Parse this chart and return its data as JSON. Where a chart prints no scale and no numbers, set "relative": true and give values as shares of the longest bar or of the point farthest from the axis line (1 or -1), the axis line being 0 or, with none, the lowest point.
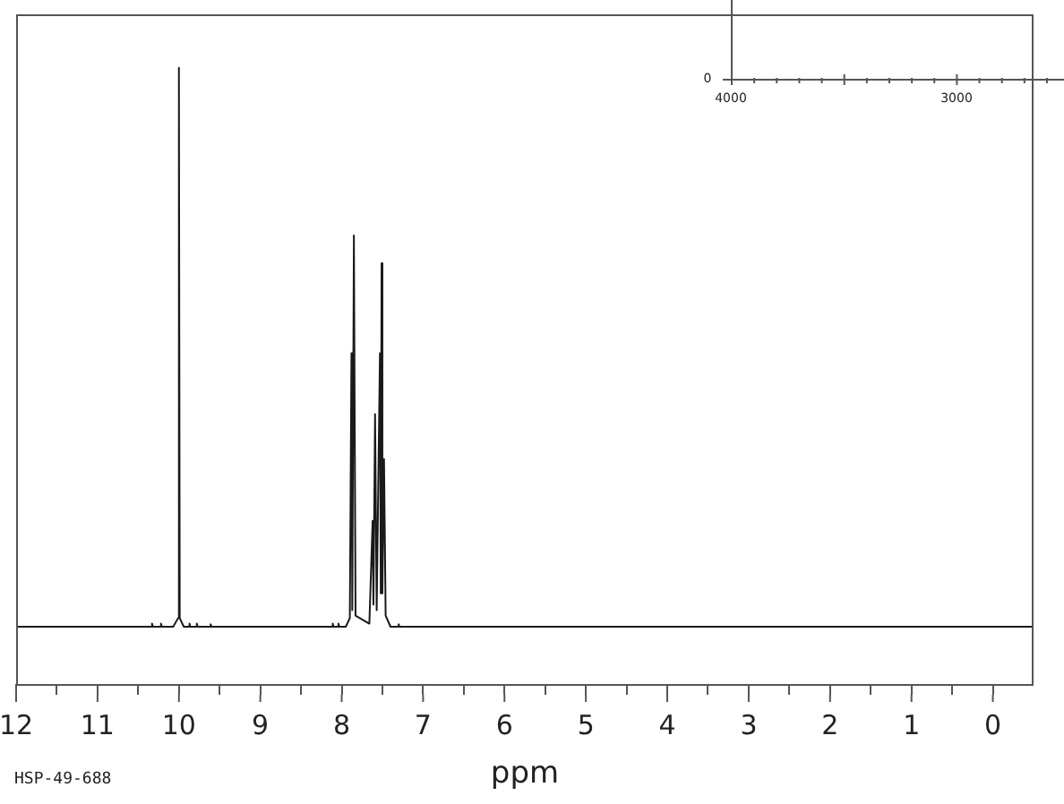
{
  "chart_data": [
    {
      "type": "line",
      "xlabel": "ppm",
      "annotations": [
        "HSP-49-688"
      ],
      "relative": true,
      "series": [
        {
          "color": "#1a1a1a",
          "x": [
            12,
            10.34,
            10.33,
            10.32,
            10.23,
            10.22,
            10.21,
            10.07,
            10.01,
            10.0,
            9.99,
            9.94,
            9.88,
            9.87,
            9.86,
            9.79,
            9.78,
            9.77,
            9.62,
            9.61,
            9.6,
            8.12,
            8.11,
            8.1,
            8.05,
            8.04,
            8.03,
            7.95,
            7.9,
            7.88,
            7.87,
            7.85,
            7.83,
            7.66,
            7.62,
            7.61,
            7.59,
            7.57,
            7.53,
            7.52,
            7.51,
            7.5,
            7.48,
            7.46,
            7.4,
            7.31,
            7.3,
            7.29,
            7.23,
            -0.5
          ],
          "values": [
            0.093,
            0.093,
            0.098,
            0.093,
            0.093,
            0.098,
            0.093,
            0.093,
            0.107,
            1,
            0.107,
            0.093,
            0.093,
            0.098,
            0.093,
            0.093,
            0.098,
            0.093,
            0.093,
            0.097,
            0.093,
            0.093,
            0.098,
            0.093,
            0.093,
            0.098,
            0.093,
            0.093,
            0.107,
            0.537,
            0.12,
            0.728,
            0.111,
            0.098,
            0.265,
            0.129,
            0.438,
            0.12,
            0.537,
            0.147,
            0.683,
            0.147,
            0.365,
            0.111,
            0.093,
            0.093,
            0.097,
            0.093,
            0.093,
            0.093
          ]
        }
      ],
      "xlim": [
        12,
        -0.5
      ],
      "xticks": [
        12,
        {
          "value": 11.5,
          "label": null
        },
        11,
        {
          "value": 10.5,
          "label": null
        },
        10,
        {
          "value": 9.5,
          "label": null
        },
        9,
        {
          "value": 8.5,
          "label": null
        },
        8,
        {
          "value": 7.5,
          "label": null
        },
        7,
        {
          "value": 6.5,
          "label": null
        },
        6,
        {
          "value": 5.5,
          "label": null
        },
        5,
        {
          "value": 4.5,
          "label": null
        },
        4,
        {
          "value": 3.5,
          "label": null
        },
        3,
        {
          "value": 2.5,
          "label": null
        },
        2,
        {
          "value": 1.5,
          "label": null
        },
        1,
        {
          "value": 0.5,
          "label": null
        },
        0
      ]
    },
    {
      "type": "other",
      "annotations": [
        "0",
        "4000",
        "3000"
      ]
    }
  ]
}
